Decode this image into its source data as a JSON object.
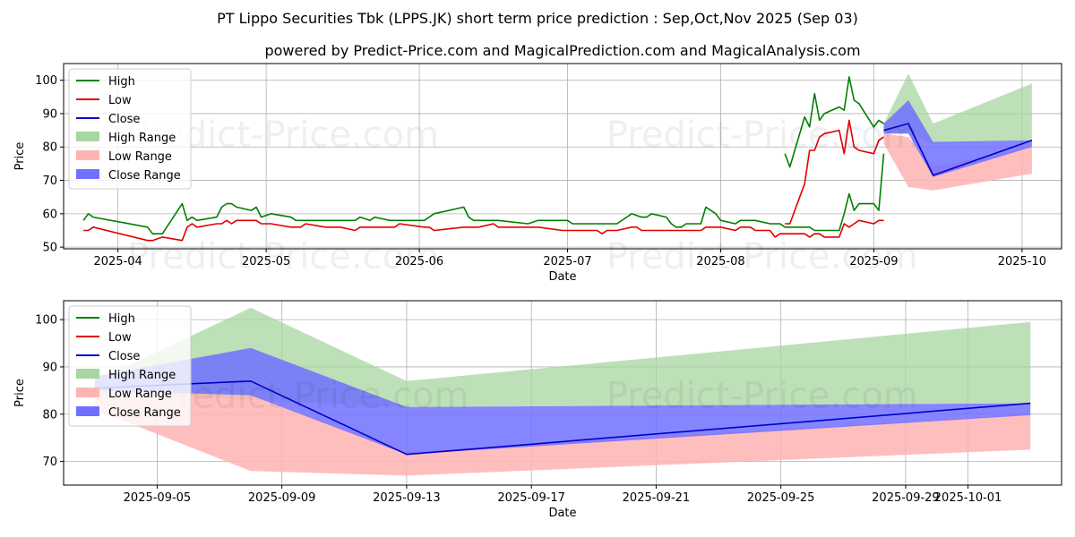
{
  "chart": {
    "title": "PT Lippo Securities Tbk (LPPS.JK) short term price prediction : Sep,Oct,Nov 2025 (Sep 03)",
    "subtitle": "powered by Predict-Price.com and MagicalPrediction.com and MagicalAnalysis.com",
    "watermark": "Predict-Price.com"
  },
  "colors": {
    "high": "#008000",
    "low": "#e00000",
    "close": "#0000cc",
    "high_range": "#a7d6a0",
    "low_range": "#ffb3b3",
    "close_range": "#7070ff"
  },
  "chart_data": [
    {
      "type": "line",
      "xlabel": "Date",
      "ylabel": "Price",
      "xlim": [
        "2025-03-21",
        "2025-10-09"
      ],
      "ylim": [
        49.5,
        105
      ],
      "x_ticks": [
        "2025-04",
        "2025-05",
        "2025-06",
        "2025-07",
        "2025-08",
        "2025-09",
        "2025-10"
      ],
      "y_ticks": [
        50,
        60,
        70,
        80,
        90,
        100
      ],
      "grid": true,
      "legend_position": "top-left",
      "legend": [
        "High",
        "Low",
        "Close",
        "High Range",
        "Low Range",
        "Close Range"
      ],
      "series": [
        {
          "name": "High",
          "x": [
            "2025-03-25",
            "2025-03-26",
            "2025-03-27",
            "2025-04-07",
            "2025-04-08",
            "2025-04-10",
            "2025-04-14",
            "2025-04-15",
            "2025-04-16",
            "2025-04-17",
            "2025-04-21",
            "2025-04-22",
            "2025-04-23",
            "2025-04-24",
            "2025-04-25",
            "2025-04-28",
            "2025-04-29",
            "2025-04-30",
            "2025-05-02",
            "2025-05-06",
            "2025-05-07",
            "2025-05-08",
            "2025-05-09",
            "2025-05-13",
            "2025-05-14",
            "2025-05-15",
            "2025-05-16",
            "2025-05-19",
            "2025-05-20",
            "2025-05-21",
            "2025-05-22",
            "2025-05-23",
            "2025-05-26",
            "2025-05-27",
            "2025-05-28",
            "2025-06-02",
            "2025-06-03",
            "2025-06-04",
            "2025-06-10",
            "2025-06-11",
            "2025-06-12",
            "2025-06-13",
            "2025-06-16",
            "2025-06-17",
            "2025-06-23",
            "2025-06-24",
            "2025-06-25",
            "2025-06-30",
            "2025-07-01",
            "2025-07-02",
            "2025-07-03",
            "2025-07-04",
            "2025-07-07",
            "2025-07-08",
            "2025-07-09",
            "2025-07-10",
            "2025-07-11",
            "2025-07-14",
            "2025-07-15",
            "2025-07-16",
            "2025-07-17",
            "2025-07-18",
            "2025-07-21",
            "2025-07-22",
            "2025-07-23",
            "2025-07-24",
            "2025-07-25",
            "2025-07-28",
            "2025-07-29",
            "2025-07-30",
            "2025-07-31",
            "2025-08-01",
            "2025-08-04",
            "2025-08-05",
            "2025-08-06",
            "2025-08-07",
            "2025-08-08",
            "2025-08-11",
            "2025-08-12",
            "2025-08-13",
            "2025-08-14",
            "2025-08-15",
            "2025-08-18",
            "2025-08-19",
            "2025-08-20",
            "2025-08-21",
            "2025-08-22",
            "2025-08-25",
            "2025-08-26",
            "2025-08-27",
            "2025-08-28",
            "2025-08-29",
            "2025-09-01",
            "2025-09-02",
            "2025-09-03"
          ],
          "values": [
            58,
            60,
            59,
            56,
            54,
            54,
            63,
            58,
            59,
            58,
            59,
            62,
            63,
            63,
            62,
            61,
            62,
            59,
            60,
            59,
            58,
            58,
            58,
            58,
            58,
            58,
            58,
            58,
            59,
            58.5,
            58,
            59,
            58,
            58,
            58,
            58,
            59,
            60,
            62,
            59,
            58,
            58,
            58,
            58,
            57,
            57.5,
            58,
            58,
            58,
            57,
            57,
            57,
            57,
            57,
            57,
            57,
            57,
            60,
            59.5,
            59,
            59,
            60,
            59,
            57,
            56,
            56,
            57,
            57,
            62,
            61,
            60,
            58,
            57,
            58,
            58,
            58,
            58,
            57,
            57,
            57,
            56,
            56,
            56,
            56,
            55,
            55,
            55,
            55,
            60,
            66,
            61,
            63,
            63,
            61,
            78
          ]
        },
        {
          "name": "Low",
          "values": [
            55,
            55,
            56,
            52,
            52,
            53,
            52,
            56,
            57,
            56,
            57,
            57,
            58,
            57,
            58,
            58,
            58,
            57,
            57,
            56,
            56,
            56,
            57,
            56,
            56,
            56,
            56,
            55,
            56,
            56,
            56,
            56,
            56,
            56,
            57,
            56,
            56,
            55,
            56,
            56,
            56,
            56,
            57,
            56,
            56,
            56,
            56,
            55,
            55,
            55,
            55,
            55,
            55,
            54,
            55,
            55,
            55,
            56,
            56,
            55,
            55,
            55,
            55,
            55,
            55,
            55,
            55,
            55,
            56,
            56,
            56,
            56,
            55,
            56,
            56,
            56,
            55,
            55,
            53,
            54,
            54,
            54,
            54,
            53,
            54,
            54,
            53,
            53,
            57,
            56,
            57,
            58,
            57,
            58,
            58
          ]
        }
      ],
      "tail_series": [
        {
          "name": "High",
          "x": [
            "2025-08-14",
            "2025-08-15",
            "2025-08-18",
            "2025-08-19",
            "2025-08-20",
            "2025-08-21",
            "2025-08-22",
            "2025-08-25",
            "2025-08-26",
            "2025-08-27",
            "2025-08-28",
            "2025-08-29",
            "2025-09-01",
            "2025-09-02",
            "2025-09-03"
          ],
          "values": [
            78,
            74,
            89,
            86,
            96,
            88,
            90,
            92,
            91,
            101,
            94,
            93,
            86,
            88,
            87
          ]
        },
        {
          "name": "Low",
          "values": [
            57,
            57,
            69,
            79,
            79,
            83,
            84,
            85,
            78,
            88,
            80,
            79,
            78,
            82,
            83
          ]
        }
      ],
      "ranges": [
        {
          "name": "High Range",
          "x": [
            "2025-09-03",
            "2025-09-08",
            "2025-09-13",
            "2025-10-03"
          ],
          "upper": [
            87,
            102,
            87,
            99
          ],
          "lower": [
            84,
            84,
            81,
            82
          ]
        },
        {
          "name": "Low Range",
          "x": [
            "2025-09-03",
            "2025-09-08",
            "2025-09-13",
            "2025-10-03"
          ],
          "upper": [
            84,
            83,
            74,
            80
          ],
          "lower": [
            81,
            68,
            67,
            72
          ]
        },
        {
          "name": "Close Range",
          "x": [
            "2025-09-03",
            "2025-09-08",
            "2025-09-13",
            "2025-10-03"
          ],
          "upper": [
            87,
            94,
            81.5,
            82
          ],
          "lower": [
            84,
            84,
            71,
            80
          ]
        }
      ],
      "forecast_close": {
        "name": "Close",
        "x": [
          "2025-09-03",
          "2025-09-08",
          "2025-09-13",
          "2025-10-03"
        ],
        "values": [
          85,
          87,
          71.5,
          82
        ]
      }
    },
    {
      "type": "line",
      "xlabel": "Date",
      "ylabel": "Price",
      "xlim": [
        "2025-09-02",
        "2025-10-04"
      ],
      "ylim": [
        65,
        104
      ],
      "x_ticks": [
        "2025-09-05",
        "2025-09-09",
        "2025-09-13",
        "2025-09-17",
        "2025-09-21",
        "2025-09-25",
        "2025-09-29",
        "2025-10-01"
      ],
      "y_ticks": [
        70,
        80,
        90,
        100
      ],
      "grid": true,
      "legend_position": "top-left",
      "legend": [
        "High",
        "Low",
        "Close",
        "High Range",
        "Low Range",
        "Close Range"
      ],
      "ranges": [
        {
          "name": "High Range",
          "x": [
            "2025-09-03",
            "2025-09-08",
            "2025-09-13",
            "2025-10-03"
          ],
          "upper": [
            87,
            102.5,
            87,
            99.5
          ],
          "lower": [
            85,
            83,
            81.5,
            82.3
          ]
        },
        {
          "name": "Low Range",
          "x": [
            "2025-09-03",
            "2025-09-08",
            "2025-09-13",
            "2025-10-03"
          ],
          "upper": [
            85,
            84,
            72,
            80
          ],
          "lower": [
            81,
            68,
            67,
            72.5
          ]
        },
        {
          "name": "Close Range",
          "x": [
            "2025-09-03",
            "2025-09-08",
            "2025-09-13",
            "2025-10-03"
          ],
          "upper": [
            88,
            94,
            81.5,
            82.3
          ],
          "lower": [
            85,
            84,
            71.5,
            79.8
          ]
        }
      ],
      "forecast_close": {
        "name": "Close",
        "x": [
          "2025-09-03",
          "2025-09-08",
          "2025-09-13",
          "2025-10-03"
        ],
        "values": [
          85.5,
          87,
          71.5,
          82.3
        ]
      }
    }
  ]
}
